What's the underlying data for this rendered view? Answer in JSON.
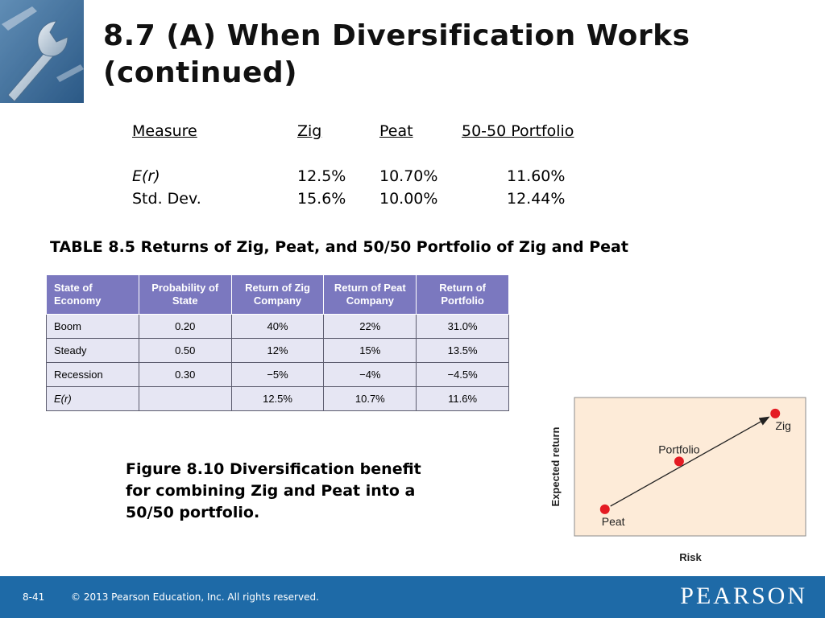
{
  "title": "8.7 (A)  When Diversification Works (continued)",
  "measure_table": {
    "headers": [
      "Measure",
      "Zig",
      "Peat",
      "50-50 Portfolio"
    ],
    "rows": [
      [
        "E(r)",
        "12.5%",
        "10.70%",
        "11.60%"
      ],
      [
        "Std. Dev.",
        "15.6%",
        "10.00%",
        "12.44%"
      ]
    ]
  },
  "table_caption": "TABLE 8.5  Returns of Zig, Peat, and 50/50 Portfolio of Zig and Peat",
  "returns_table": {
    "headers": [
      [
        "State of",
        "Economy"
      ],
      [
        "Probability of",
        "State"
      ],
      [
        "Return of Zig",
        "Company"
      ],
      [
        "Return of Peat",
        "Company"
      ],
      [
        "Return of",
        "Portfolio"
      ]
    ],
    "rows": [
      [
        "Boom",
        "0.20",
        "40%",
        "22%",
        "31.0%"
      ],
      [
        "Steady",
        "0.50",
        "12%",
        "15%",
        "13.5%"
      ],
      [
        "Recession",
        "0.30",
        "−5%",
        "−4%",
        "−4.5%"
      ],
      [
        "E(r)",
        "",
        "12.5%",
        "10.7%",
        "11.6%"
      ]
    ]
  },
  "figure_caption": {
    "lines": [
      "Figure 8.10  Diversification benefit",
      "for combining Zig and Peat into a",
      "50/50 portfolio."
    ]
  },
  "chart_data": {
    "type": "scatter",
    "xlabel": "Risk",
    "ylabel": "Expected return",
    "points": [
      {
        "label": "Peat",
        "x": 10.0,
        "y": 10.7
      },
      {
        "label": "Portfolio",
        "x": 12.44,
        "y": 11.6
      },
      {
        "label": "Zig",
        "x": 15.6,
        "y": 12.5
      }
    ],
    "arrow": {
      "from": "Peat",
      "to": "Zig"
    },
    "point_color": "#e41b23",
    "background_color": "#fdebd8"
  },
  "footer": {
    "page": "8-41",
    "copyright": "© 2013 Pearson Education, Inc. All rights reserved.",
    "brand": "PEARSON",
    "bar_color": "#1e6aa7"
  }
}
